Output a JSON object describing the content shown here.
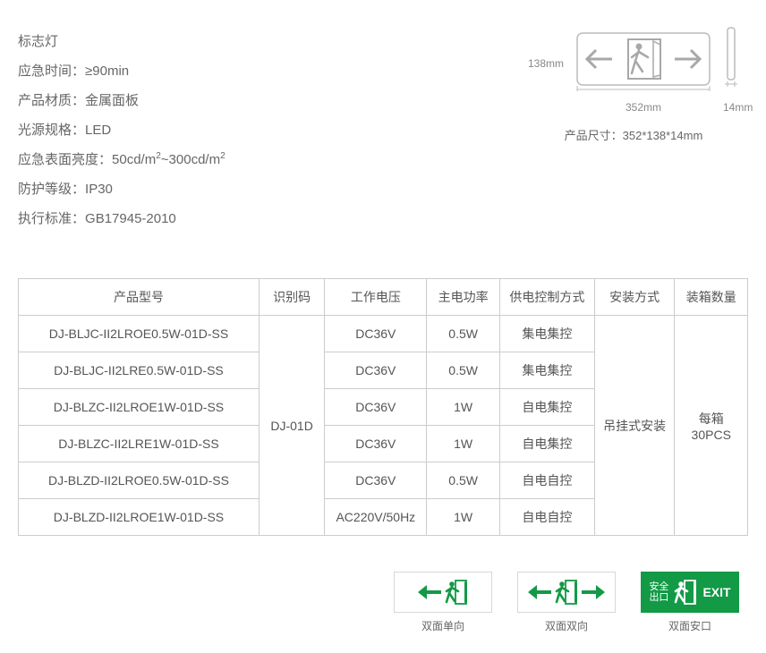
{
  "title": "标志灯",
  "specs": [
    {
      "label": "应急时间",
      "value": "≥90min"
    },
    {
      "label": "产品材质",
      "value": "金属面板"
    },
    {
      "label": "光源规格",
      "value": "LED"
    },
    {
      "label": "应急表面亮度",
      "value_html": "50cd/m²~300cd/m²"
    },
    {
      "label": "防护等级",
      "value": "IP30"
    },
    {
      "label": "执行标准",
      "value": "GB17945-2010"
    }
  ],
  "diagram": {
    "height_label": "138mm",
    "width_label": "352mm",
    "depth_label": "14mm",
    "dims_text": "产品尺寸：352*138*14mm",
    "outline_stroke": "#bbbbbb",
    "icon_stroke": "#a8a8a8"
  },
  "table": {
    "headers": [
      "产品型号",
      "识别码",
      "工作电压",
      "主电功率",
      "供电控制方式",
      "安装方式",
      "装箱数量"
    ],
    "id_code": "DJ-01D",
    "install": "吊挂式安装",
    "packing": "每箱30PCS",
    "rows": [
      {
        "model": "DJ-BLJC-II2LROE0.5W-01D-SS",
        "voltage": "DC36V",
        "power": "0.5W",
        "ctrl": "集电集控"
      },
      {
        "model": "DJ-BLJC-II2LRE0.5W-01D-SS",
        "voltage": "DC36V",
        "power": "0.5W",
        "ctrl": "集电集控"
      },
      {
        "model": "DJ-BLZC-II2LROE1W-01D-SS",
        "voltage": "DC36V",
        "power": "1W",
        "ctrl": "自电集控"
      },
      {
        "model": "DJ-BLZC-II2LRE1W-01D-SS",
        "voltage": "DC36V",
        "power": "1W",
        "ctrl": "自电集控"
      },
      {
        "model": "DJ-BLZD-II2LROE0.5W-01D-SS",
        "voltage": "DC36V",
        "power": "0.5W",
        "ctrl": "自电自控"
      },
      {
        "model": "DJ-BLZD-II2LROE1W-01D-SS",
        "voltage": "AC220V/50Hz",
        "power": "1W",
        "ctrl": "自电自控"
      }
    ]
  },
  "variants": {
    "green": "#129a46",
    "items": [
      {
        "type": "left-single",
        "label": "双面单向"
      },
      {
        "type": "both-arrows",
        "label": "双面双向"
      },
      {
        "type": "safe-exit",
        "label": "双面安口",
        "cn": "安全出口",
        "en": "EXIT"
      }
    ]
  }
}
